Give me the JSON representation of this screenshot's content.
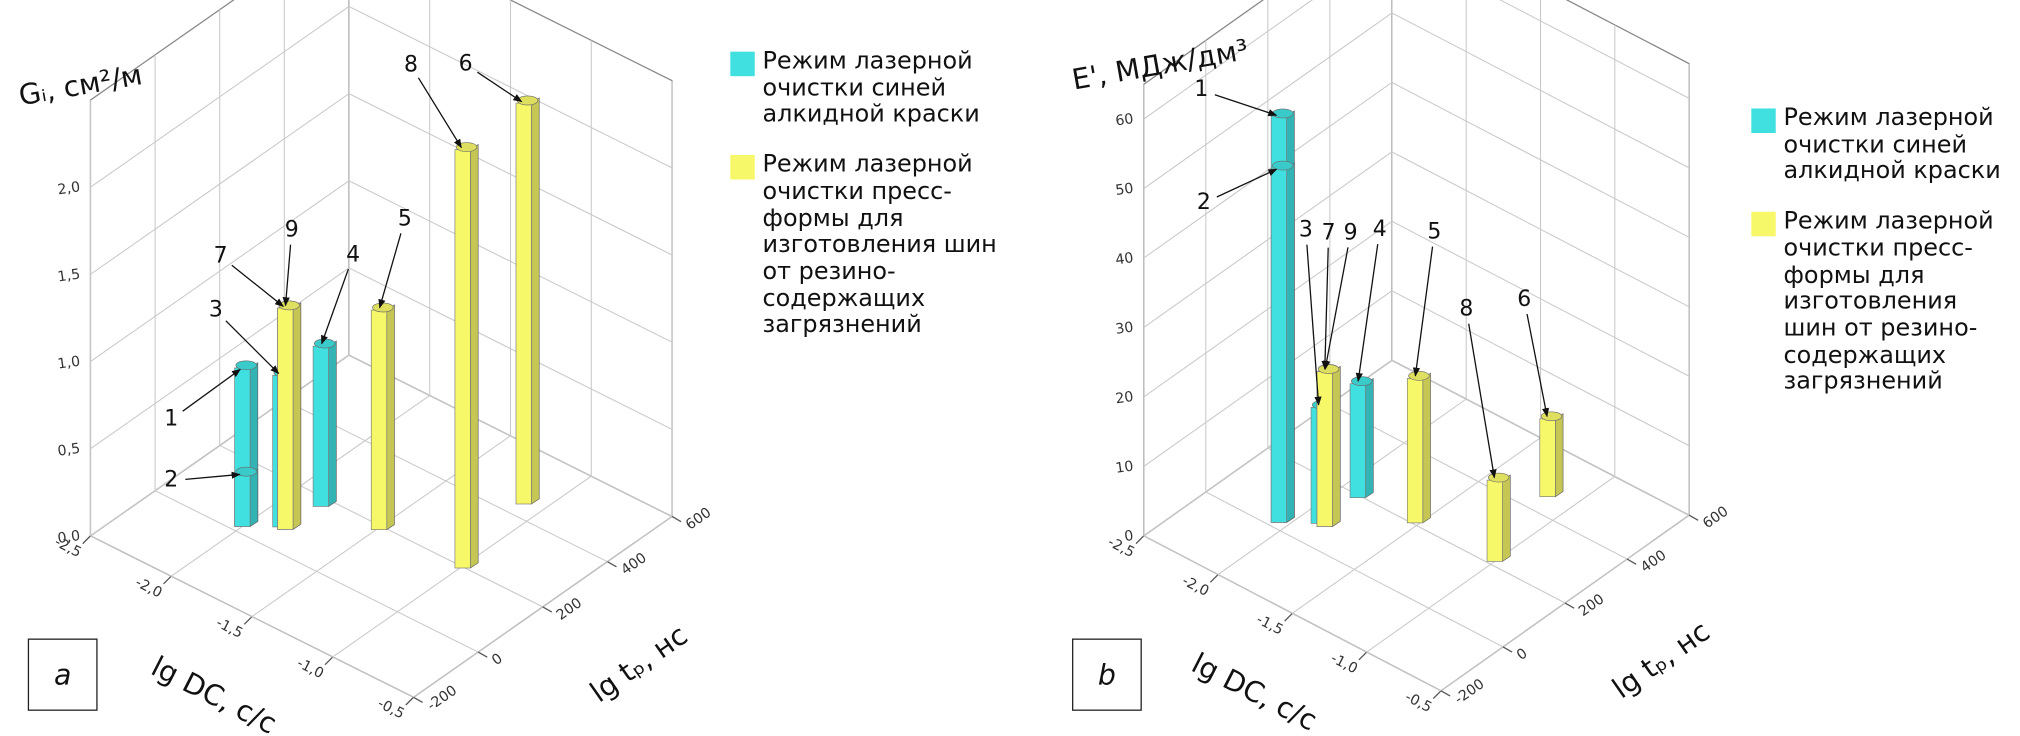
{
  "chart_data": [
    {
      "type": "bar3d",
      "panel_label": "a",
      "zlabel": "Gᵢ, см²/м",
      "xlabel": "lg DC, с/с",
      "ylabel": "lg tₚ, нс",
      "xlim": [
        -2.5,
        -0.5
      ],
      "xticks": [
        {
          "value": -2.5,
          "label": "-2,5"
        },
        {
          "value": -2.0,
          "label": "-2,0"
        },
        {
          "value": -1.5,
          "label": "-1,5"
        },
        {
          "value": -1.0,
          "label": "-1,0"
        },
        {
          "value": -0.5,
          "label": "-0,5"
        }
      ],
      "ylim": [
        -200,
        600
      ],
      "yticks": [
        -200,
        0,
        200,
        400,
        600
      ],
      "zlim": [
        0,
        2.5
      ],
      "zticks": [
        {
          "value": 0,
          "label": "0,0"
        },
        {
          "value": 0.5,
          "label": "0,5"
        },
        {
          "value": 1.0,
          "label": "1,0"
        },
        {
          "value": 1.5,
          "label": "1,5"
        },
        {
          "value": 2.0,
          "label": "2,0"
        }
      ],
      "categories": [
        "1",
        "2",
        "3",
        "4",
        "5",
        "6",
        "7",
        "8",
        "9"
      ],
      "x": [
        -2.0,
        -2.0,
        -1.86,
        -1.82,
        -1.49,
        -1.1,
        -1.83,
        -0.99,
        -1.83
      ],
      "y": [
        20,
        20,
        68,
        173,
        188,
        441,
        68,
        197,
        68
      ],
      "series": [
        {
          "name": "Режим лазерной очистки синей алкидной краски",
          "color": "#40e0e0",
          "values": [
            0.91,
            0.3,
            0.87,
            0.92,
            null,
            null,
            null,
            null,
            null
          ]
        },
        {
          "name": "Режим лазерной очистки пресс-формы для изготовления шин от резино-содержащих загрязнений",
          "color": "#f7f76a",
          "values": [
            null,
            null,
            null,
            null,
            1.26,
            2.3,
            1.27,
            2.4,
            1.27
          ]
        }
      ]
    },
    {
      "type": "bar3d",
      "panel_label": "b",
      "zlabel": "E', МДж/дм³",
      "xlabel": "lg DC, с/с",
      "ylabel": "lg tₚ, нс",
      "xlim": [
        -2.5,
        -0.5
      ],
      "xticks": [
        {
          "value": -2.5,
          "label": "-2,5"
        },
        {
          "value": -2.0,
          "label": "-2,0"
        },
        {
          "value": -1.5,
          "label": "-1,5"
        },
        {
          "value": -1.0,
          "label": "-1,0"
        },
        {
          "value": -0.5,
          "label": "-0,5"
        }
      ],
      "ylim": [
        -200,
        600
      ],
      "yticks": [
        -200,
        0,
        200,
        400,
        600
      ],
      "zlim": [
        0,
        65
      ],
      "zticks": [
        0,
        10,
        20,
        30,
        40,
        50,
        60
      ],
      "categories": [
        "1",
        "2",
        "3",
        "4",
        "5",
        "6",
        "7",
        "8",
        "9"
      ],
      "x": [
        -2.05,
        -2.05,
        -1.89,
        -1.88,
        -1.52,
        -1.15,
        -1.85,
        -1.0,
        -1.85
      ],
      "y": [
        20,
        20,
        72,
        193,
        205,
        455,
        72,
        213,
        72
      ],
      "series": [
        {
          "name": "Режим лазерной очистки синей алкидной краски",
          "color": "#40e0e0",
          "values": [
            58.5,
            51,
            16.7,
            16.4,
            null,
            null,
            null,
            null,
            null
          ]
        },
        {
          "name": "Режим лазерной очистки пресс-формы для изготовления шин от резино-содержащих загрязнений",
          "color": "#f7f76a",
          "values": [
            null,
            null,
            null,
            null,
            20.8,
            11.2,
            22.3,
            11.7,
            22.3
          ]
        }
      ]
    }
  ]
}
